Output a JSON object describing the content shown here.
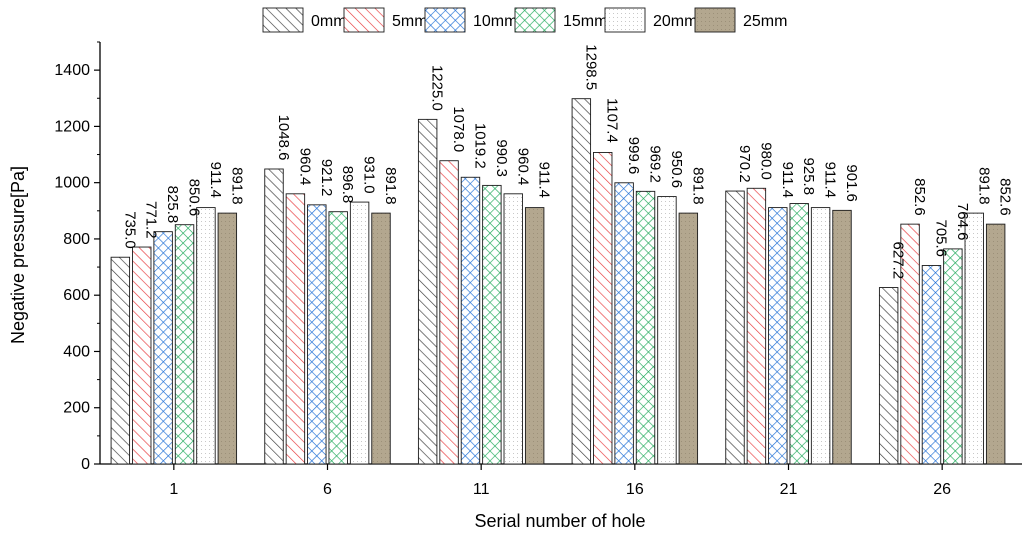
{
  "chart_data": {
    "type": "bar",
    "title": "",
    "xlabel": "Serial number of hole",
    "ylabel": "Negative pressure[Pa]",
    "ylim": [
      0,
      1500
    ],
    "yticks": [
      0,
      200,
      400,
      600,
      800,
      1000,
      1200,
      1400
    ],
    "categories": [
      "1",
      "6",
      "11",
      "16",
      "21",
      "26"
    ],
    "legend_position": "top",
    "series": [
      {
        "name": "0mm",
        "pattern": "diag-hatch",
        "color": "#3a3a3a",
        "values": [
          735.0,
          1048.6,
          1225.0,
          1298.5,
          970.2,
          627.2
        ],
        "labels": [
          "735.0",
          "1048.6",
          "1225.0",
          "1298.5",
          "970.2",
          "627.2"
        ]
      },
      {
        "name": "5mm",
        "pattern": "diag-hatch",
        "color": "#e8383b",
        "values": [
          771.2,
          960.4,
          1078.0,
          1107.4,
          980.0,
          852.6
        ],
        "labels": [
          "771.2",
          "960.4",
          "1078.0",
          "1107.4",
          "980.0",
          "852.6"
        ]
      },
      {
        "name": "10mm",
        "pattern": "cross-hatch",
        "color": "#1f6fd6",
        "values": [
          825.8,
          921.2,
          1019.2,
          999.6,
          911.4,
          705.6
        ],
        "labels": [
          "825.8",
          "921.2",
          "1019.2",
          "999.6",
          "911.4",
          "705.6"
        ]
      },
      {
        "name": "15mm",
        "pattern": "cross-hatch",
        "color": "#1faa5a",
        "values": [
          850.6,
          896.8,
          990.3,
          969.2,
          925.8,
          764.6
        ],
        "labels": [
          "850.6",
          "896.8",
          "990.3",
          "969.2",
          "925.8",
          "764.6"
        ]
      },
      {
        "name": "20mm",
        "pattern": "dots",
        "color": "#bdbdbd",
        "values": [
          911.4,
          931.0,
          960.4,
          950.6,
          911.4,
          891.8
        ],
        "labels": [
          "911.4",
          "931.0",
          "960.4",
          "950.6",
          "911.4",
          "891.8"
        ]
      },
      {
        "name": "25mm",
        "pattern": "solid",
        "color": "#b3a78f",
        "values": [
          891.8,
          891.8,
          911.4,
          891.8,
          901.6,
          852.6
        ],
        "labels": [
          "891.8",
          "891.8",
          "911.4",
          "891.8",
          "901.6",
          "852.6"
        ]
      }
    ]
  }
}
